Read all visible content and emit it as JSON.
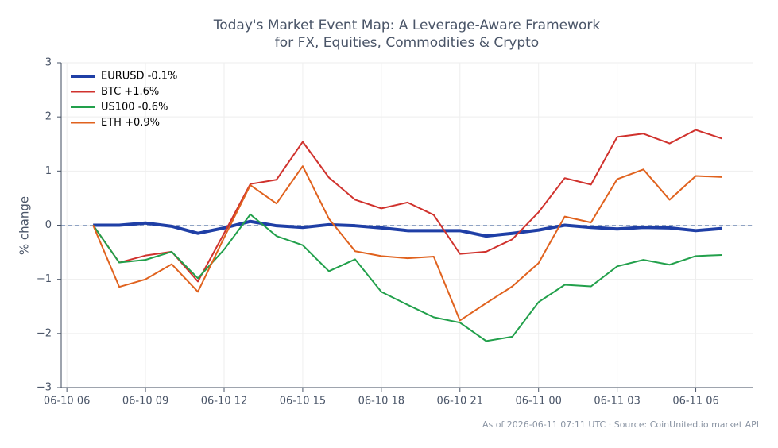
{
  "chart_data": {
    "type": "line",
    "title": "Today's Market Event Map: A Leverage-Aware Framework",
    "subtitle": "for FX, Equities, Commodities & Crypto",
    "y_label": "% change",
    "footnote": "As of 2026-06-11 07:11 UTC · Source: CoinUnited.io market API",
    "x": [
      "06-10 07",
      "06-10 08",
      "06-10 09",
      "06-10 10",
      "06-10 11",
      "06-10 12",
      "06-10 13",
      "06-10 14",
      "06-10 15",
      "06-10 16",
      "06-10 17",
      "06-10 18",
      "06-10 19",
      "06-10 20",
      "06-10 21",
      "06-10 22",
      "06-10 23",
      "06-11 00",
      "06-11 01",
      "06-11 02",
      "06-11 03",
      "06-11 04",
      "06-11 05",
      "06-11 06",
      "06-11 07"
    ],
    "xlim": [
      "06-10 05:47",
      "06-11 08:10"
    ],
    "xticks": [
      "06-10 06",
      "06-10 09",
      "06-10 12",
      "06-10 15",
      "06-10 18",
      "06-10 21",
      "06-11 00",
      "06-11 03",
      "06-11 06"
    ],
    "ylim": [
      -3,
      3
    ],
    "yticks": [
      {
        "value": -3,
        "label": "−3"
      },
      {
        "value": -2,
        "label": "−2"
      },
      {
        "value": -1,
        "label": "−1"
      },
      0,
      1,
      2,
      3
    ],
    "grid": true,
    "zero_line": true,
    "legend": "upper left",
    "series": [
      {
        "name": "EURUSD -0.1%",
        "color": "#1f3fa6",
        "width": 4,
        "values": [
          0,
          0,
          0.04,
          -0.02,
          -0.15,
          -0.05,
          0.07,
          -0.01,
          -0.04,
          0.01,
          -0.01,
          -0.05,
          -0.1,
          -0.1,
          -0.1,
          -0.2,
          -0.15,
          -0.09,
          0,
          -0.04,
          -0.07,
          -0.04,
          -0.05,
          -0.1,
          -0.06
        ]
      },
      {
        "name": "BTC +1.6%",
        "color": "#d0322d",
        "width": 2,
        "values": [
          0,
          -0.69,
          -0.56,
          -0.49,
          -1.04,
          -0.15,
          0.76,
          0.84,
          1.54,
          0.88,
          0.47,
          0.31,
          0.42,
          0.19,
          -0.53,
          -0.49,
          -0.26,
          0.24,
          0.87,
          0.75,
          1.63,
          1.69,
          1.51,
          1.76,
          1.6
        ]
      },
      {
        "name": "US100 -0.6%",
        "color": "#22a04b",
        "width": 2,
        "values": [
          0,
          -0.69,
          -0.64,
          -0.49,
          -0.98,
          -0.45,
          0.2,
          -0.2,
          -0.37,
          -0.85,
          -0.63,
          -1.23,
          -1.47,
          -1.7,
          -1.8,
          -2.14,
          -2.06,
          -1.42,
          -1.1,
          -1.13,
          -0.76,
          -0.64,
          -0.73,
          -0.57,
          -0.55
        ]
      },
      {
        "name": "ETH +0.9%",
        "color": "#e0621e",
        "width": 2,
        "values": [
          0,
          -1.14,
          -1.0,
          -0.72,
          -1.23,
          -0.23,
          0.74,
          0.4,
          1.09,
          0.12,
          -0.48,
          -0.57,
          -0.61,
          -0.58,
          -1.76,
          -1.44,
          -1.13,
          -0.7,
          0.16,
          0.05,
          0.85,
          1.03,
          0.47,
          0.91,
          0.89
        ]
      }
    ]
  }
}
